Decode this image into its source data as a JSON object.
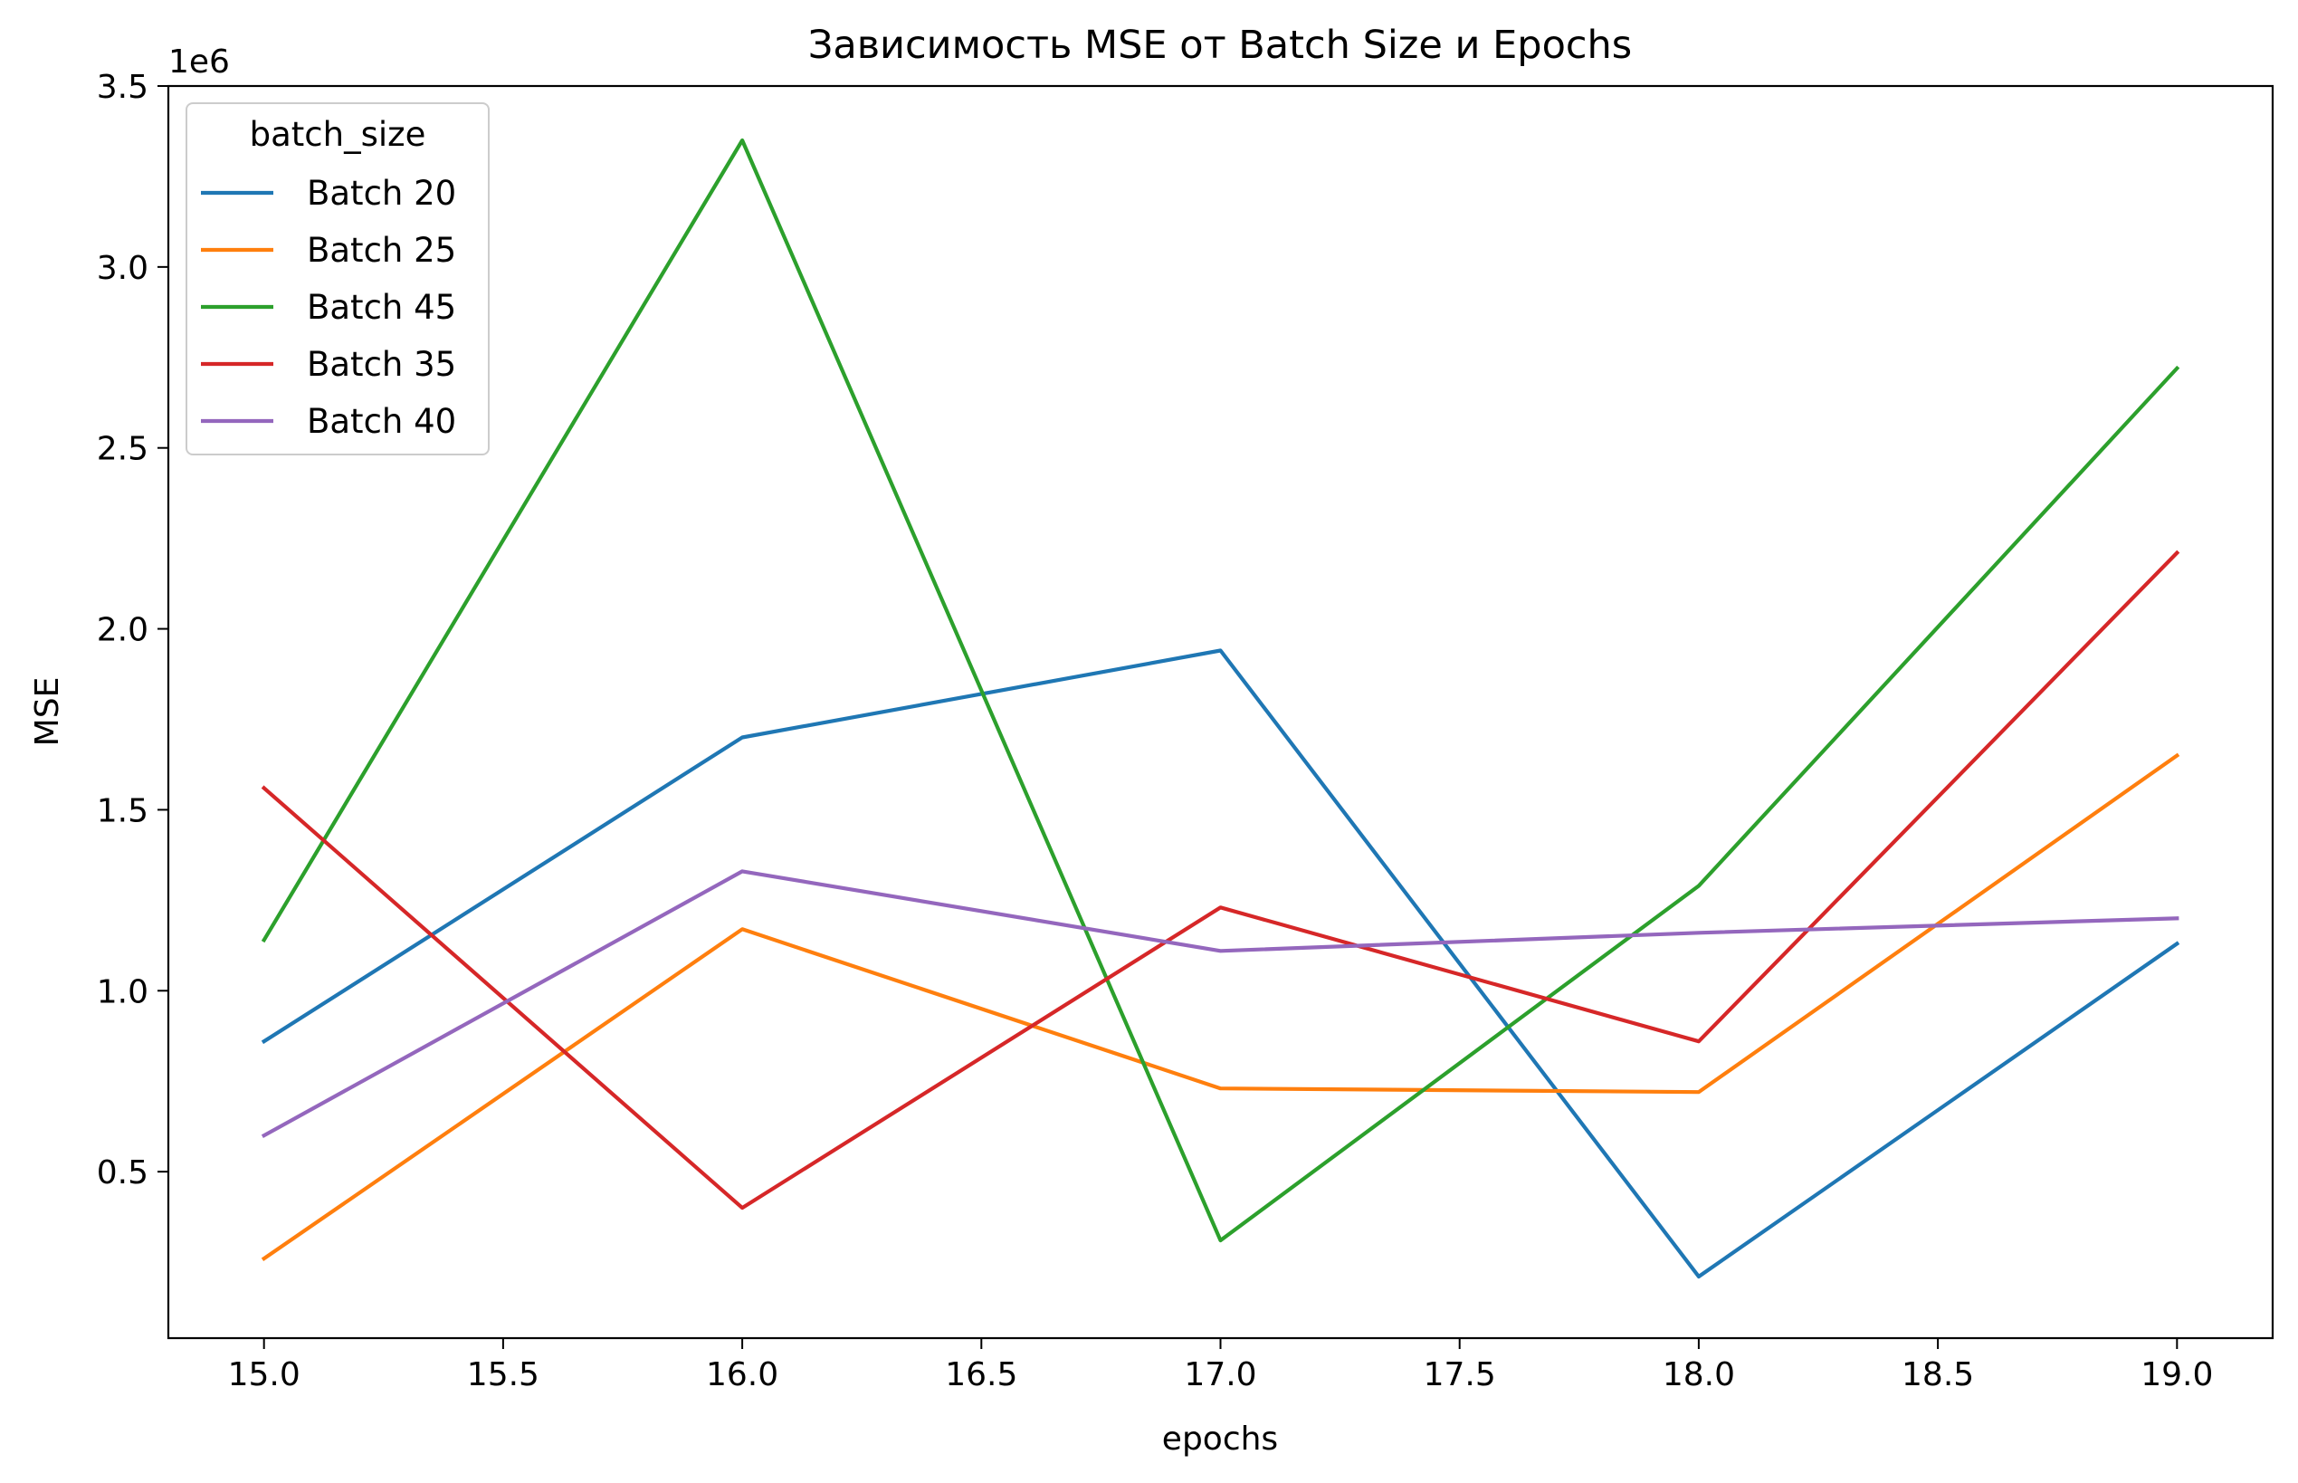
{
  "chart_data": {
    "type": "line",
    "title": "Зависимость MSE от Batch Size и Epochs",
    "xlabel": "epochs",
    "ylabel": "MSE",
    "y_scale_label": "1e6",
    "x": [
      15,
      16,
      17,
      18,
      19
    ],
    "xlim": [
      14.8,
      19.2
    ],
    "ylim": [
      0.04,
      3.5
    ],
    "x_unit_note": "",
    "x_ticks": [
      15.0,
      15.5,
      16.0,
      16.5,
      17.0,
      17.5,
      18.0,
      18.5,
      19.0
    ],
    "x_tick_labels": [
      "15.0",
      "15.5",
      "16.0",
      "16.5",
      "17.0",
      "17.5",
      "18.0",
      "18.5",
      "19.0"
    ],
    "y_ticks": [
      0.5,
      1.0,
      1.5,
      2.0,
      2.5,
      3.0,
      3.5
    ],
    "y_tick_labels": [
      "0.5",
      "1.0",
      "1.5",
      "2.0",
      "2.5",
      "3.0",
      "3.5"
    ],
    "grid": false,
    "legend": {
      "title": "batch_size",
      "placement": "upper-left"
    },
    "series": [
      {
        "name": "Batch 20",
        "color": "#1f77b4",
        "values": [
          0.86,
          1.7,
          1.94,
          0.21,
          1.13
        ]
      },
      {
        "name": "Batch 25",
        "color": "#ff7f0e",
        "values": [
          0.26,
          1.17,
          0.73,
          0.72,
          1.65
        ]
      },
      {
        "name": "Batch 45",
        "color": "#2ca02c",
        "values": [
          1.14,
          3.35,
          0.31,
          1.29,
          2.72
        ]
      },
      {
        "name": "Batch 35",
        "color": "#d62728",
        "values": [
          1.56,
          0.4,
          1.23,
          0.86,
          2.21
        ]
      },
      {
        "name": "Batch 40",
        "color": "#9467bd",
        "values": [
          0.6,
          1.33,
          1.11,
          1.16,
          1.2
        ]
      }
    ]
  }
}
